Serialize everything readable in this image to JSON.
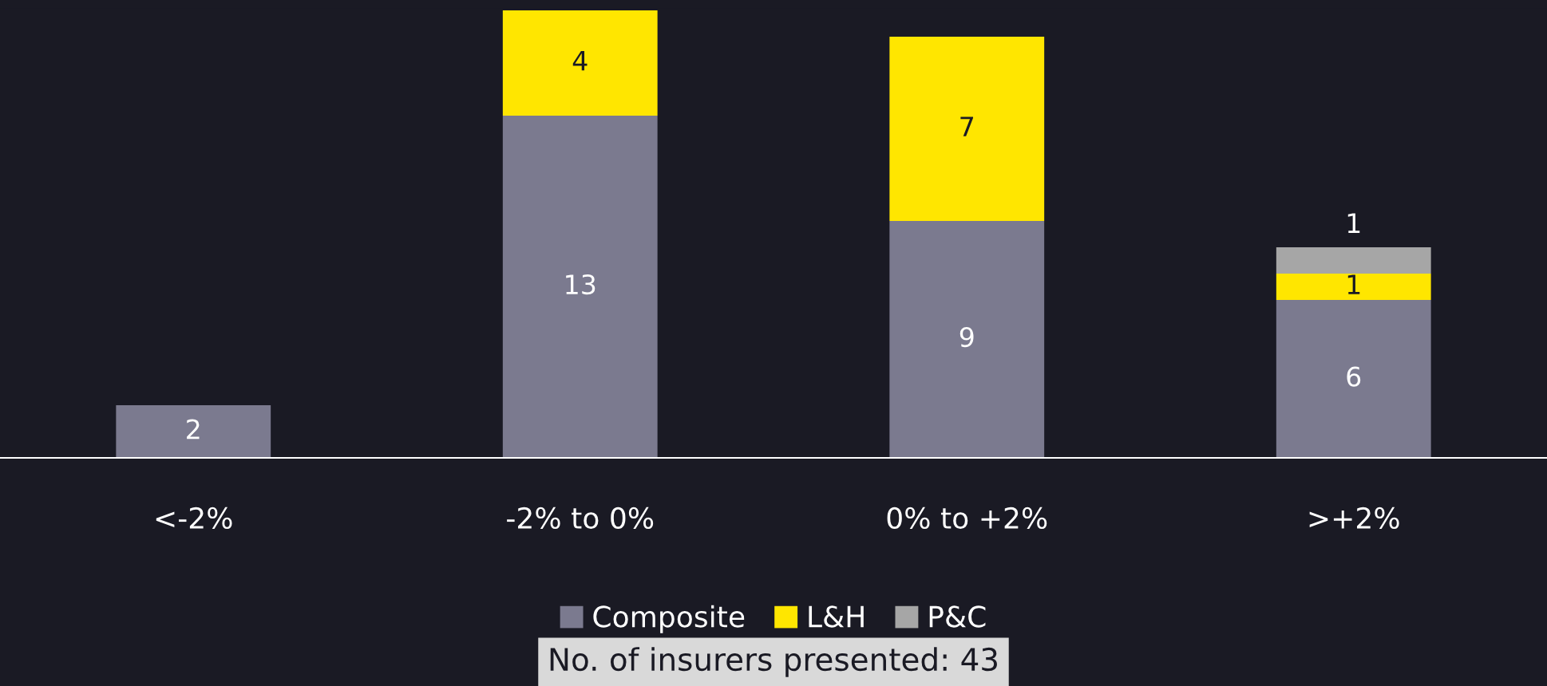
{
  "chart_data": {
    "type": "bar",
    "stacked": true,
    "data_labels": true,
    "legend": "bottom",
    "grid": false,
    "categories": [
      "<-2%",
      "-2% to 0%",
      "0% to +2%",
      ">+2%"
    ],
    "series": [
      {
        "name": "Composite",
        "color": "#7b7a8f",
        "values": [
          2,
          13,
          9,
          6
        ]
      },
      {
        "name": "L&H",
        "color": "#ffe600",
        "values": [
          null,
          4,
          7,
          1
        ]
      },
      {
        "name": "P&C",
        "color": "#a6a6a6",
        "values": [
          null,
          null,
          null,
          1
        ]
      }
    ],
    "annotations": [
      "No. of insurers presented: 43"
    ]
  }
}
